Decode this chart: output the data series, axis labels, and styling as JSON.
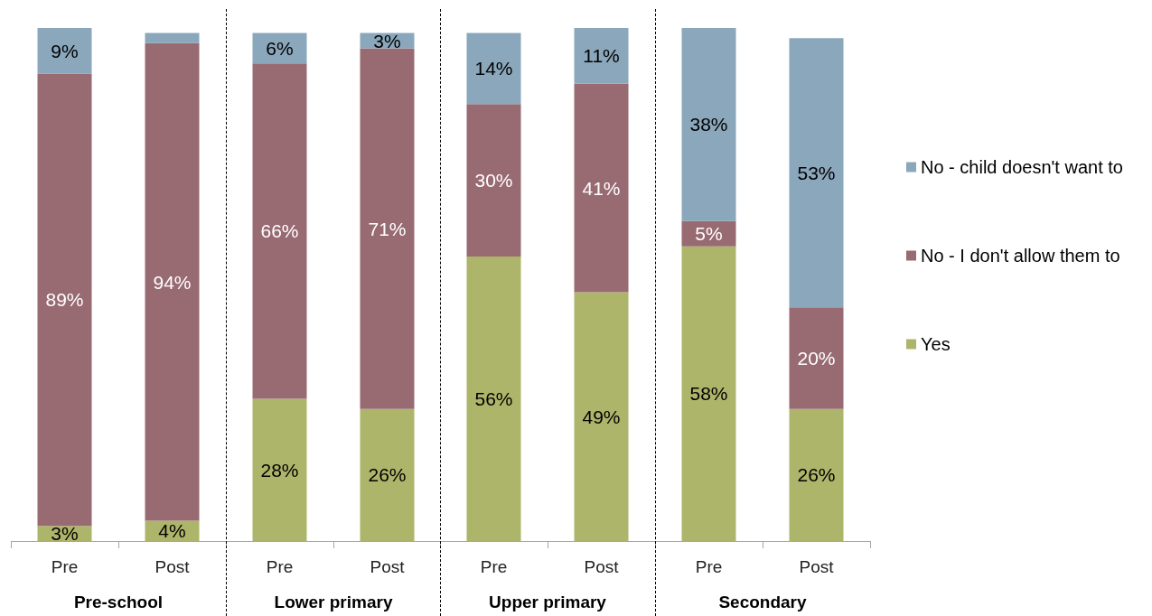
{
  "chart_data": [
    {
      "type": "bar",
      "stacked": true,
      "xlabel": "Pre-school",
      "categories": [
        "Pre",
        "Post"
      ],
      "tick_labels": "x",
      "series": [
        {
          "color": "#adb56a",
          "values": [
            3,
            4
          ],
          "value_labels": [
            "3%",
            "4%"
          ]
        },
        {
          "color": "#986a72",
          "values": [
            89,
            94
          ],
          "value_labels": [
            "89%",
            "94%"
          ]
        },
        {
          "color": "#8aa7bb",
          "values": [
            9,
            2
          ],
          "value_labels": [
            "9%",
            null
          ]
        }
      ]
    },
    {
      "type": "bar",
      "stacked": true,
      "xlabel": "Lower primary",
      "categories": [
        "Pre",
        "Post"
      ],
      "tick_labels": "x",
      "series": [
        {
          "color": "#adb56a",
          "values": [
            28,
            26
          ],
          "value_labels": [
            "28%",
            "26%"
          ]
        },
        {
          "color": "#986a72",
          "values": [
            66,
            71
          ],
          "value_labels": [
            "66%",
            "71%"
          ]
        },
        {
          "color": "#8aa7bb",
          "values": [
            6,
            3
          ],
          "value_labels": [
            "6%",
            "3%"
          ]
        }
      ]
    },
    {
      "type": "bar",
      "stacked": true,
      "xlabel": "Upper primary",
      "categories": [
        "Pre",
        "Post"
      ],
      "tick_labels": "x",
      "series": [
        {
          "color": "#adb56a",
          "values": [
            56,
            49
          ],
          "value_labels": [
            "56%",
            "49%"
          ]
        },
        {
          "color": "#986a72",
          "values": [
            30,
            41
          ],
          "value_labels": [
            "30%",
            "41%"
          ]
        },
        {
          "color": "#8aa7bb",
          "values": [
            14,
            11
          ],
          "value_labels": [
            "14%",
            "11%"
          ]
        }
      ]
    },
    {
      "type": "bar",
      "stacked": true,
      "xlabel": "Secondary",
      "categories": [
        "Pre",
        "Post"
      ],
      "tick_labels": "x",
      "legend": "right",
      "series": [
        {
          "name": "Yes",
          "color": "#adb56a",
          "values": [
            58,
            26
          ],
          "value_labels": [
            "58%",
            "26%"
          ]
        },
        {
          "name": "No - I don't allow them to",
          "color": "#986a72",
          "values": [
            5,
            20
          ],
          "value_labels": [
            "5%",
            "20%"
          ]
        },
        {
          "name": "No - child doesn't want to",
          "color": "#8aa7bb",
          "values": [
            38,
            53
          ],
          "value_labels": [
            "38%",
            "53%"
          ]
        }
      ]
    }
  ]
}
